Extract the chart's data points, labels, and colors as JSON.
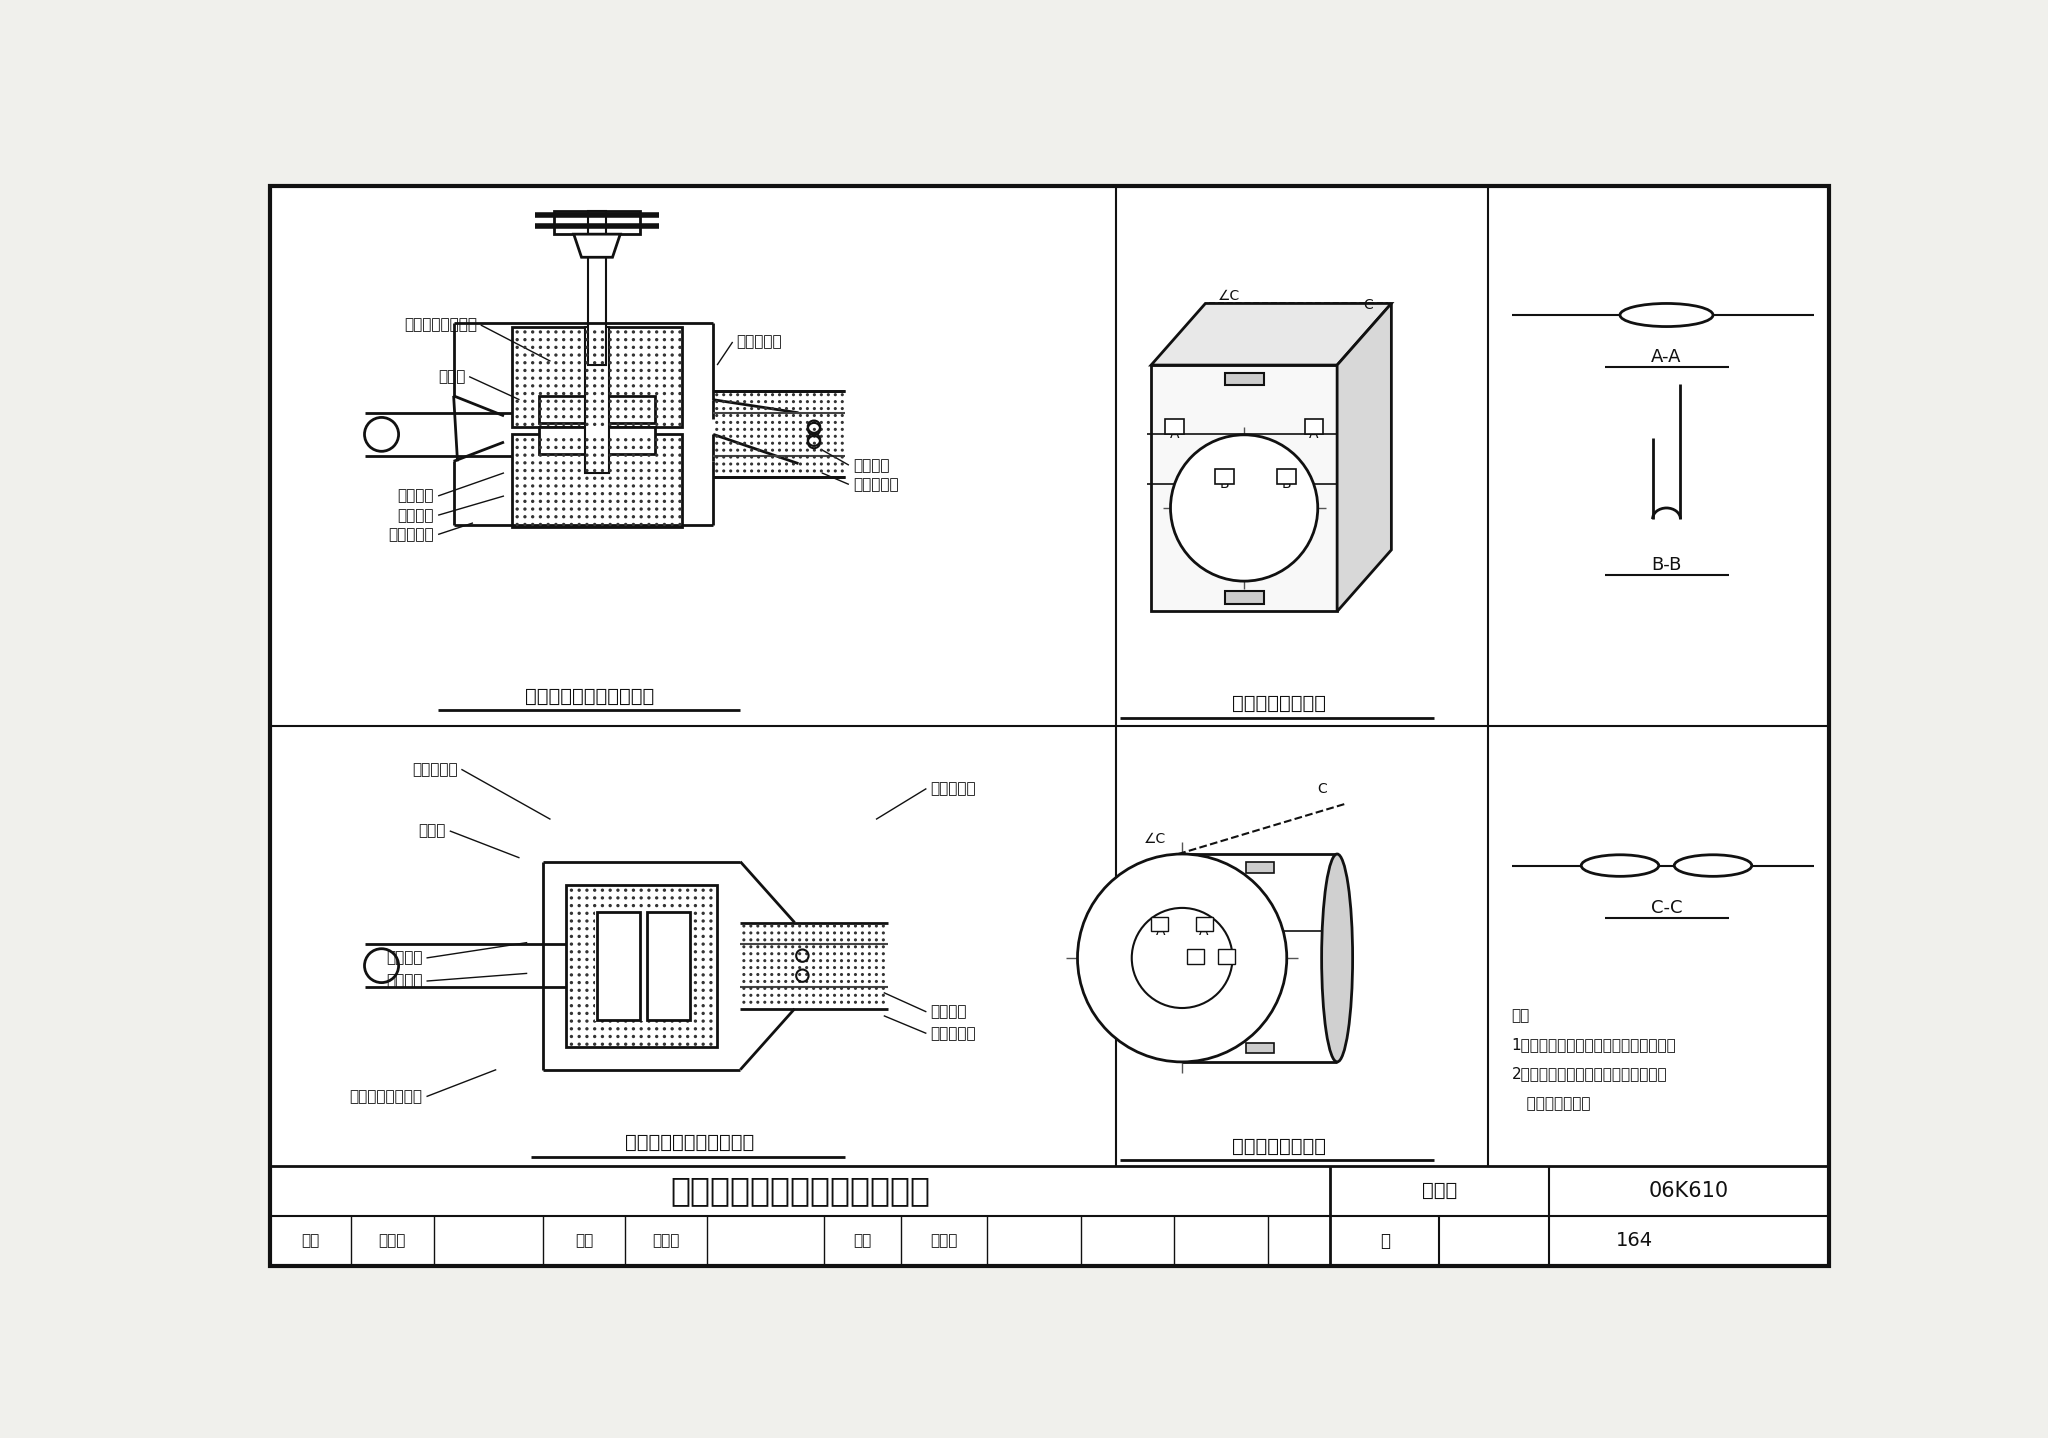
{
  "bg_color": "#f5f5f0",
  "title_row1": "阀门、法兰不可拆式保冷结构",
  "atlas_label": "图集号",
  "atlas_val": "06K610",
  "page_number": "164",
  "caption_valve": "不可拆式阀门保冷结构图",
  "caption_flange": "不可拆式法兰保冷结构图",
  "caption_valve_shield": "阀门用金属保护罩",
  "caption_flange_shield": "法兰用金属保护罩",
  "notes": [
    "注：",
    "1．保冷厚度与相应直管保冷厚度相同．",
    "2．管道外皮防腐、保护层外皮防腐与",
    "   直管防腐相同．"
  ],
  "footer_labels": [
    "审核",
    "潘云钢",
    "校对",
    "白世胜",
    "设计",
    "冯婷婷",
    "页"
  ],
  "section_aa": "A-A",
  "section_bb": "B-B",
  "section_cc": "C-C",
  "valve_labels_left": [
    "填塞软质绝热材料",
    "防潮层",
    "保冷材料",
    "刷密封胶",
    "金属保护层"
  ],
  "valve_labels_right": [
    "金属保护层",
    "自攻螺钉",
    "或抽芯铆钉"
  ],
  "flange_labels_left": [
    "金属保冷层",
    "防潮层",
    "保冷材料",
    "刷密封胶",
    "填塞软质绝热材料"
  ],
  "flange_labels_right": [
    "金属保护层",
    "自攻螺钉",
    "或抽芯铆钉"
  ]
}
